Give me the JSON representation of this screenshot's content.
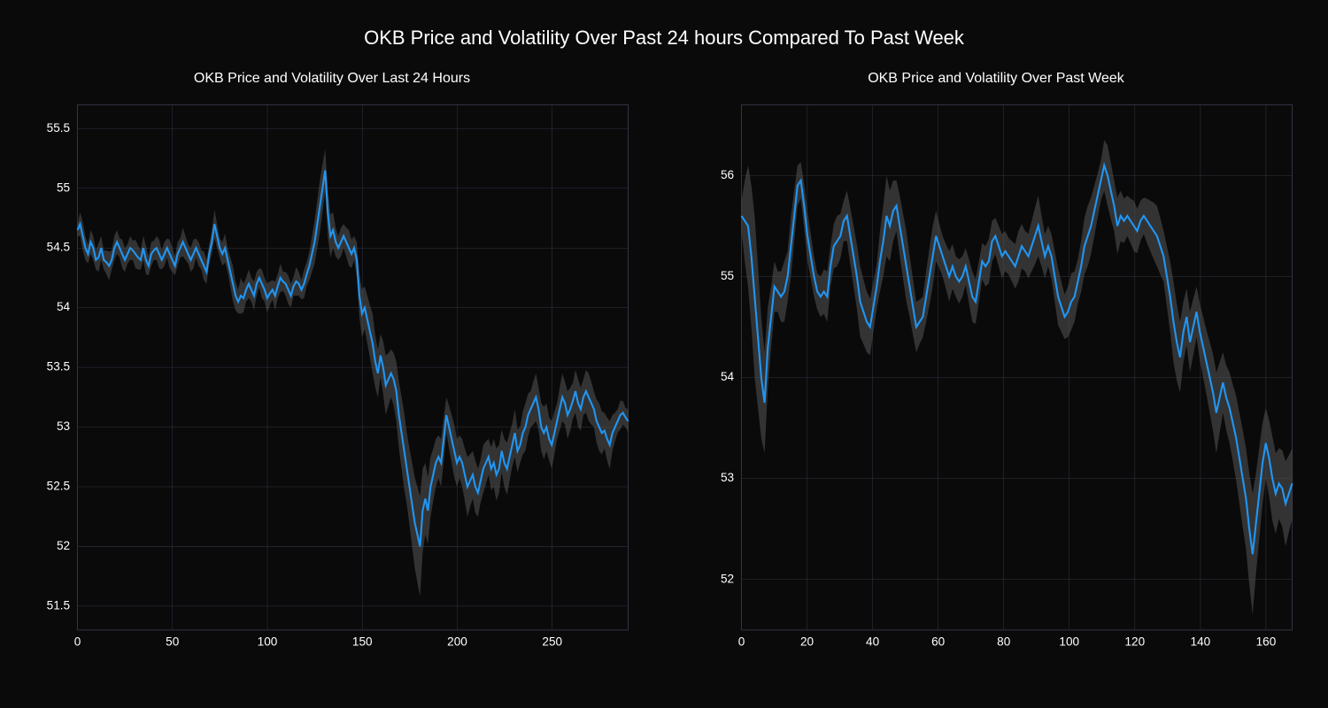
{
  "figure": {
    "suptitle": "OKB Price and Volatility Over Past 24 hours Compared To Past Week",
    "suptitle_fontsize": 22,
    "background_color": "#0a0a0a",
    "text_color": "#ffffff"
  },
  "chart_left": {
    "type": "line",
    "title": "OKB Price and Volatility Over Last 24 Hours",
    "title_fontsize": 16,
    "line_color": "#2196f3",
    "band_color": "#555555",
    "band_opacity": 0.55,
    "grid_color": "#333344",
    "line_width": 2,
    "xlim": [
      0,
      290
    ],
    "ylim": [
      51.3,
      55.7
    ],
    "xticks": [
      0,
      50,
      100,
      150,
      200,
      250
    ],
    "yticks": [
      51.5,
      52,
      52.5,
      53,
      53.5,
      54,
      54.5,
      55,
      55.5
    ],
    "ytick_labels": [
      "51.5",
      "52",
      "52.5",
      "53",
      "53.5",
      "54",
      "54.5",
      "55",
      "55.5"
    ],
    "values": [
      54.65,
      54.7,
      54.6,
      54.5,
      54.45,
      54.55,
      54.5,
      54.4,
      54.42,
      54.5,
      54.4,
      54.38,
      54.35,
      54.4,
      54.5,
      54.55,
      54.5,
      54.45,
      54.4,
      54.45,
      54.5,
      54.48,
      54.45,
      54.42,
      54.4,
      54.5,
      54.4,
      54.35,
      54.45,
      54.48,
      54.5,
      54.45,
      54.4,
      54.45,
      54.5,
      54.45,
      54.4,
      54.35,
      54.45,
      54.5,
      54.55,
      54.5,
      54.45,
      54.4,
      54.45,
      54.5,
      54.45,
      54.4,
      54.35,
      54.3,
      54.45,
      54.55,
      54.7,
      54.6,
      54.5,
      54.45,
      54.5,
      54.4,
      54.3,
      54.2,
      54.1,
      54.05,
      54.1,
      54.08,
      54.15,
      54.2,
      54.15,
      54.1,
      54.2,
      54.25,
      54.2,
      54.15,
      54.08,
      54.12,
      54.15,
      54.1,
      54.18,
      54.25,
      54.22,
      54.2,
      54.15,
      54.1,
      54.18,
      54.22,
      54.2,
      54.15,
      54.2,
      54.28,
      54.35,
      54.45,
      54.55,
      54.7,
      54.85,
      55.0,
      55.15,
      54.8,
      54.6,
      54.65,
      54.55,
      54.5,
      54.55,
      54.6,
      54.55,
      54.5,
      54.45,
      54.5,
      54.4,
      54.1,
      53.95,
      54.0,
      53.9,
      53.8,
      53.7,
      53.55,
      53.45,
      53.6,
      53.5,
      53.35,
      53.4,
      53.45,
      53.4,
      53.3,
      53.1,
      52.95,
      52.8,
      52.65,
      52.5,
      52.35,
      52.2,
      52.1,
      52.0,
      52.3,
      52.4,
      52.3,
      52.5,
      52.6,
      52.7,
      52.75,
      52.7,
      52.9,
      53.1,
      53.0,
      52.9,
      52.8,
      52.7,
      52.75,
      52.7,
      52.6,
      52.5,
      52.55,
      52.6,
      52.5,
      52.45,
      52.55,
      52.65,
      52.7,
      52.75,
      52.65,
      52.7,
      52.6,
      52.65,
      52.8,
      52.7,
      52.65,
      52.75,
      52.85,
      52.95,
      52.8,
      52.85,
      52.95,
      53.0,
      53.1,
      53.15,
      53.2,
      53.25,
      53.15,
      53.0,
      52.95,
      53.0,
      52.9,
      52.85,
      52.95,
      53.05,
      53.15,
      53.25,
      53.2,
      53.1,
      53.15,
      53.22,
      53.3,
      53.2,
      53.15,
      53.25,
      53.3,
      53.25,
      53.2,
      53.15,
      53.05,
      53.0,
      52.95,
      52.97,
      52.9,
      52.85,
      52.95,
      53.0,
      53.05,
      53.1,
      53.12,
      53.08,
      53.05
    ],
    "band_width": [
      0.05,
      0.1,
      0.12,
      0.1,
      0.08,
      0.1,
      0.1,
      0.08,
      0.12,
      0.1,
      0.08,
      0.1,
      0.12,
      0.08,
      0.1,
      0.1,
      0.08,
      0.12,
      0.1,
      0.08,
      0.1,
      0.08,
      0.12,
      0.1,
      0.08,
      0.1,
      0.12,
      0.08,
      0.1,
      0.08,
      0.1,
      0.12,
      0.08,
      0.1,
      0.08,
      0.12,
      0.1,
      0.08,
      0.1,
      0.08,
      0.12,
      0.1,
      0.08,
      0.1,
      0.12,
      0.08,
      0.1,
      0.08,
      0.12,
      0.1,
      0.08,
      0.1,
      0.12,
      0.1,
      0.08,
      0.1,
      0.12,
      0.1,
      0.12,
      0.15,
      0.12,
      0.1,
      0.15,
      0.12,
      0.1,
      0.12,
      0.1,
      0.12,
      0.1,
      0.08,
      0.12,
      0.1,
      0.12,
      0.1,
      0.08,
      0.12,
      0.1,
      0.12,
      0.08,
      0.1,
      0.12,
      0.1,
      0.08,
      0.12,
      0.1,
      0.08,
      0.12,
      0.1,
      0.12,
      0.15,
      0.18,
      0.2,
      0.22,
      0.2,
      0.18,
      0.2,
      0.18,
      0.15,
      0.12,
      0.1,
      0.12,
      0.1,
      0.12,
      0.15,
      0.12,
      0.1,
      0.15,
      0.18,
      0.2,
      0.18,
      0.2,
      0.22,
      0.25,
      0.22,
      0.2,
      0.18,
      0.22,
      0.25,
      0.22,
      0.2,
      0.22,
      0.25,
      0.28,
      0.3,
      0.32,
      0.3,
      0.32,
      0.35,
      0.38,
      0.4,
      0.42,
      0.35,
      0.3,
      0.28,
      0.25,
      0.22,
      0.2,
      0.18,
      0.2,
      0.18,
      0.15,
      0.18,
      0.2,
      0.22,
      0.2,
      0.18,
      0.2,
      0.22,
      0.25,
      0.22,
      0.2,
      0.22,
      0.2,
      0.18,
      0.2,
      0.18,
      0.15,
      0.18,
      0.2,
      0.22,
      0.2,
      0.18,
      0.2,
      0.22,
      0.2,
      0.18,
      0.2,
      0.18,
      0.15,
      0.18,
      0.2,
      0.18,
      0.15,
      0.18,
      0.2,
      0.18,
      0.2,
      0.22,
      0.2,
      0.18,
      0.2,
      0.18,
      0.15,
      0.18,
      0.2,
      0.18,
      0.2,
      0.18,
      0.15,
      0.18,
      0.2,
      0.18,
      0.15,
      0.18,
      0.2,
      0.18,
      0.15,
      0.18,
      0.2,
      0.18,
      0.15,
      0.18,
      0.2,
      0.15,
      0.12,
      0.1,
      0.12,
      0.1,
      0.08,
      0.1
    ]
  },
  "chart_right": {
    "type": "line",
    "title": "OKB Price and Volatility Over Past Week",
    "title_fontsize": 16,
    "line_color": "#2196f3",
    "band_color": "#555555",
    "band_opacity": 0.55,
    "grid_color": "#333344",
    "line_width": 2,
    "xlim": [
      0,
      168
    ],
    "ylim": [
      51.5,
      56.7
    ],
    "xticks": [
      0,
      20,
      40,
      60,
      80,
      100,
      120,
      140,
      160
    ],
    "yticks": [
      52,
      53,
      54,
      55,
      56
    ],
    "ytick_labels": [
      "52",
      "53",
      "54",
      "55",
      "56"
    ],
    "values": [
      55.6,
      55.55,
      55.5,
      55.2,
      54.8,
      54.4,
      54.0,
      53.75,
      54.3,
      54.6,
      54.9,
      54.85,
      54.8,
      54.85,
      55.0,
      55.3,
      55.6,
      55.9,
      55.95,
      55.7,
      55.4,
      55.2,
      55.0,
      54.85,
      54.8,
      54.85,
      54.8,
      55.1,
      55.3,
      55.35,
      55.4,
      55.55,
      55.6,
      55.4,
      55.2,
      55.0,
      54.75,
      54.65,
      54.55,
      54.5,
      54.7,
      54.9,
      55.15,
      55.35,
      55.6,
      55.5,
      55.65,
      55.7,
      55.5,
      55.3,
      55.1,
      54.9,
      54.7,
      54.5,
      54.55,
      54.6,
      54.8,
      55.0,
      55.2,
      55.4,
      55.3,
      55.2,
      55.1,
      55.0,
      55.1,
      55.0,
      54.95,
      55.0,
      55.1,
      54.95,
      54.8,
      54.75,
      54.95,
      55.15,
      55.1,
      55.15,
      55.35,
      55.4,
      55.3,
      55.2,
      55.25,
      55.2,
      55.15,
      55.1,
      55.2,
      55.3,
      55.25,
      55.2,
      55.3,
      55.4,
      55.5,
      55.35,
      55.2,
      55.3,
      55.2,
      55.0,
      54.8,
      54.7,
      54.6,
      54.65,
      54.75,
      54.8,
      54.95,
      55.1,
      55.3,
      55.4,
      55.5,
      55.65,
      55.8,
      55.95,
      56.1,
      56.0,
      55.85,
      55.7,
      55.5,
      55.6,
      55.55,
      55.6,
      55.55,
      55.5,
      55.45,
      55.55,
      55.6,
      55.55,
      55.5,
      55.45,
      55.4,
      55.3,
      55.2,
      55.0,
      54.8,
      54.55,
      54.35,
      54.2,
      54.45,
      54.6,
      54.35,
      54.5,
      54.65,
      54.45,
      54.3,
      54.15,
      54.0,
      53.85,
      53.65,
      53.8,
      53.95,
      53.8,
      53.7,
      53.55,
      53.4,
      53.2,
      53.0,
      52.8,
      52.5,
      52.25,
      52.55,
      52.85,
      53.15,
      53.35,
      53.2,
      53.0,
      52.85,
      52.95,
      52.9,
      52.75,
      52.85,
      52.95
    ],
    "band_width": [
      0.15,
      0.4,
      0.6,
      0.7,
      0.8,
      0.7,
      0.6,
      0.5,
      0.4,
      0.3,
      0.25,
      0.2,
      0.25,
      0.3,
      0.25,
      0.3,
      0.25,
      0.2,
      0.18,
      0.22,
      0.25,
      0.22,
      0.2,
      0.18,
      0.2,
      0.22,
      0.25,
      0.2,
      0.22,
      0.25,
      0.22,
      0.2,
      0.25,
      0.28,
      0.3,
      0.32,
      0.35,
      0.32,
      0.3,
      0.28,
      0.25,
      0.22,
      0.3,
      0.35,
      0.4,
      0.35,
      0.3,
      0.25,
      0.3,
      0.32,
      0.35,
      0.3,
      0.28,
      0.25,
      0.22,
      0.2,
      0.25,
      0.28,
      0.3,
      0.25,
      0.22,
      0.2,
      0.22,
      0.25,
      0.22,
      0.2,
      0.22,
      0.2,
      0.18,
      0.22,
      0.25,
      0.22,
      0.2,
      0.18,
      0.2,
      0.22,
      0.2,
      0.18,
      0.2,
      0.22,
      0.2,
      0.18,
      0.2,
      0.22,
      0.25,
      0.22,
      0.2,
      0.22,
      0.25,
      0.28,
      0.3,
      0.25,
      0.22,
      0.2,
      0.22,
      0.25,
      0.28,
      0.25,
      0.22,
      0.25,
      0.28,
      0.25,
      0.22,
      0.25,
      0.28,
      0.3,
      0.28,
      0.25,
      0.22,
      0.2,
      0.25,
      0.3,
      0.28,
      0.25,
      0.28,
      0.25,
      0.22,
      0.2,
      0.22,
      0.25,
      0.22,
      0.2,
      0.18,
      0.22,
      0.25,
      0.28,
      0.3,
      0.28,
      0.25,
      0.3,
      0.35,
      0.4,
      0.38,
      0.35,
      0.3,
      0.28,
      0.3,
      0.28,
      0.25,
      0.28,
      0.3,
      0.32,
      0.35,
      0.38,
      0.4,
      0.35,
      0.3,
      0.32,
      0.35,
      0.38,
      0.42,
      0.45,
      0.48,
      0.5,
      0.55,
      0.6,
      0.5,
      0.45,
      0.4,
      0.35,
      0.38,
      0.42,
      0.4,
      0.35,
      0.38,
      0.42,
      0.38,
      0.35
    ]
  }
}
